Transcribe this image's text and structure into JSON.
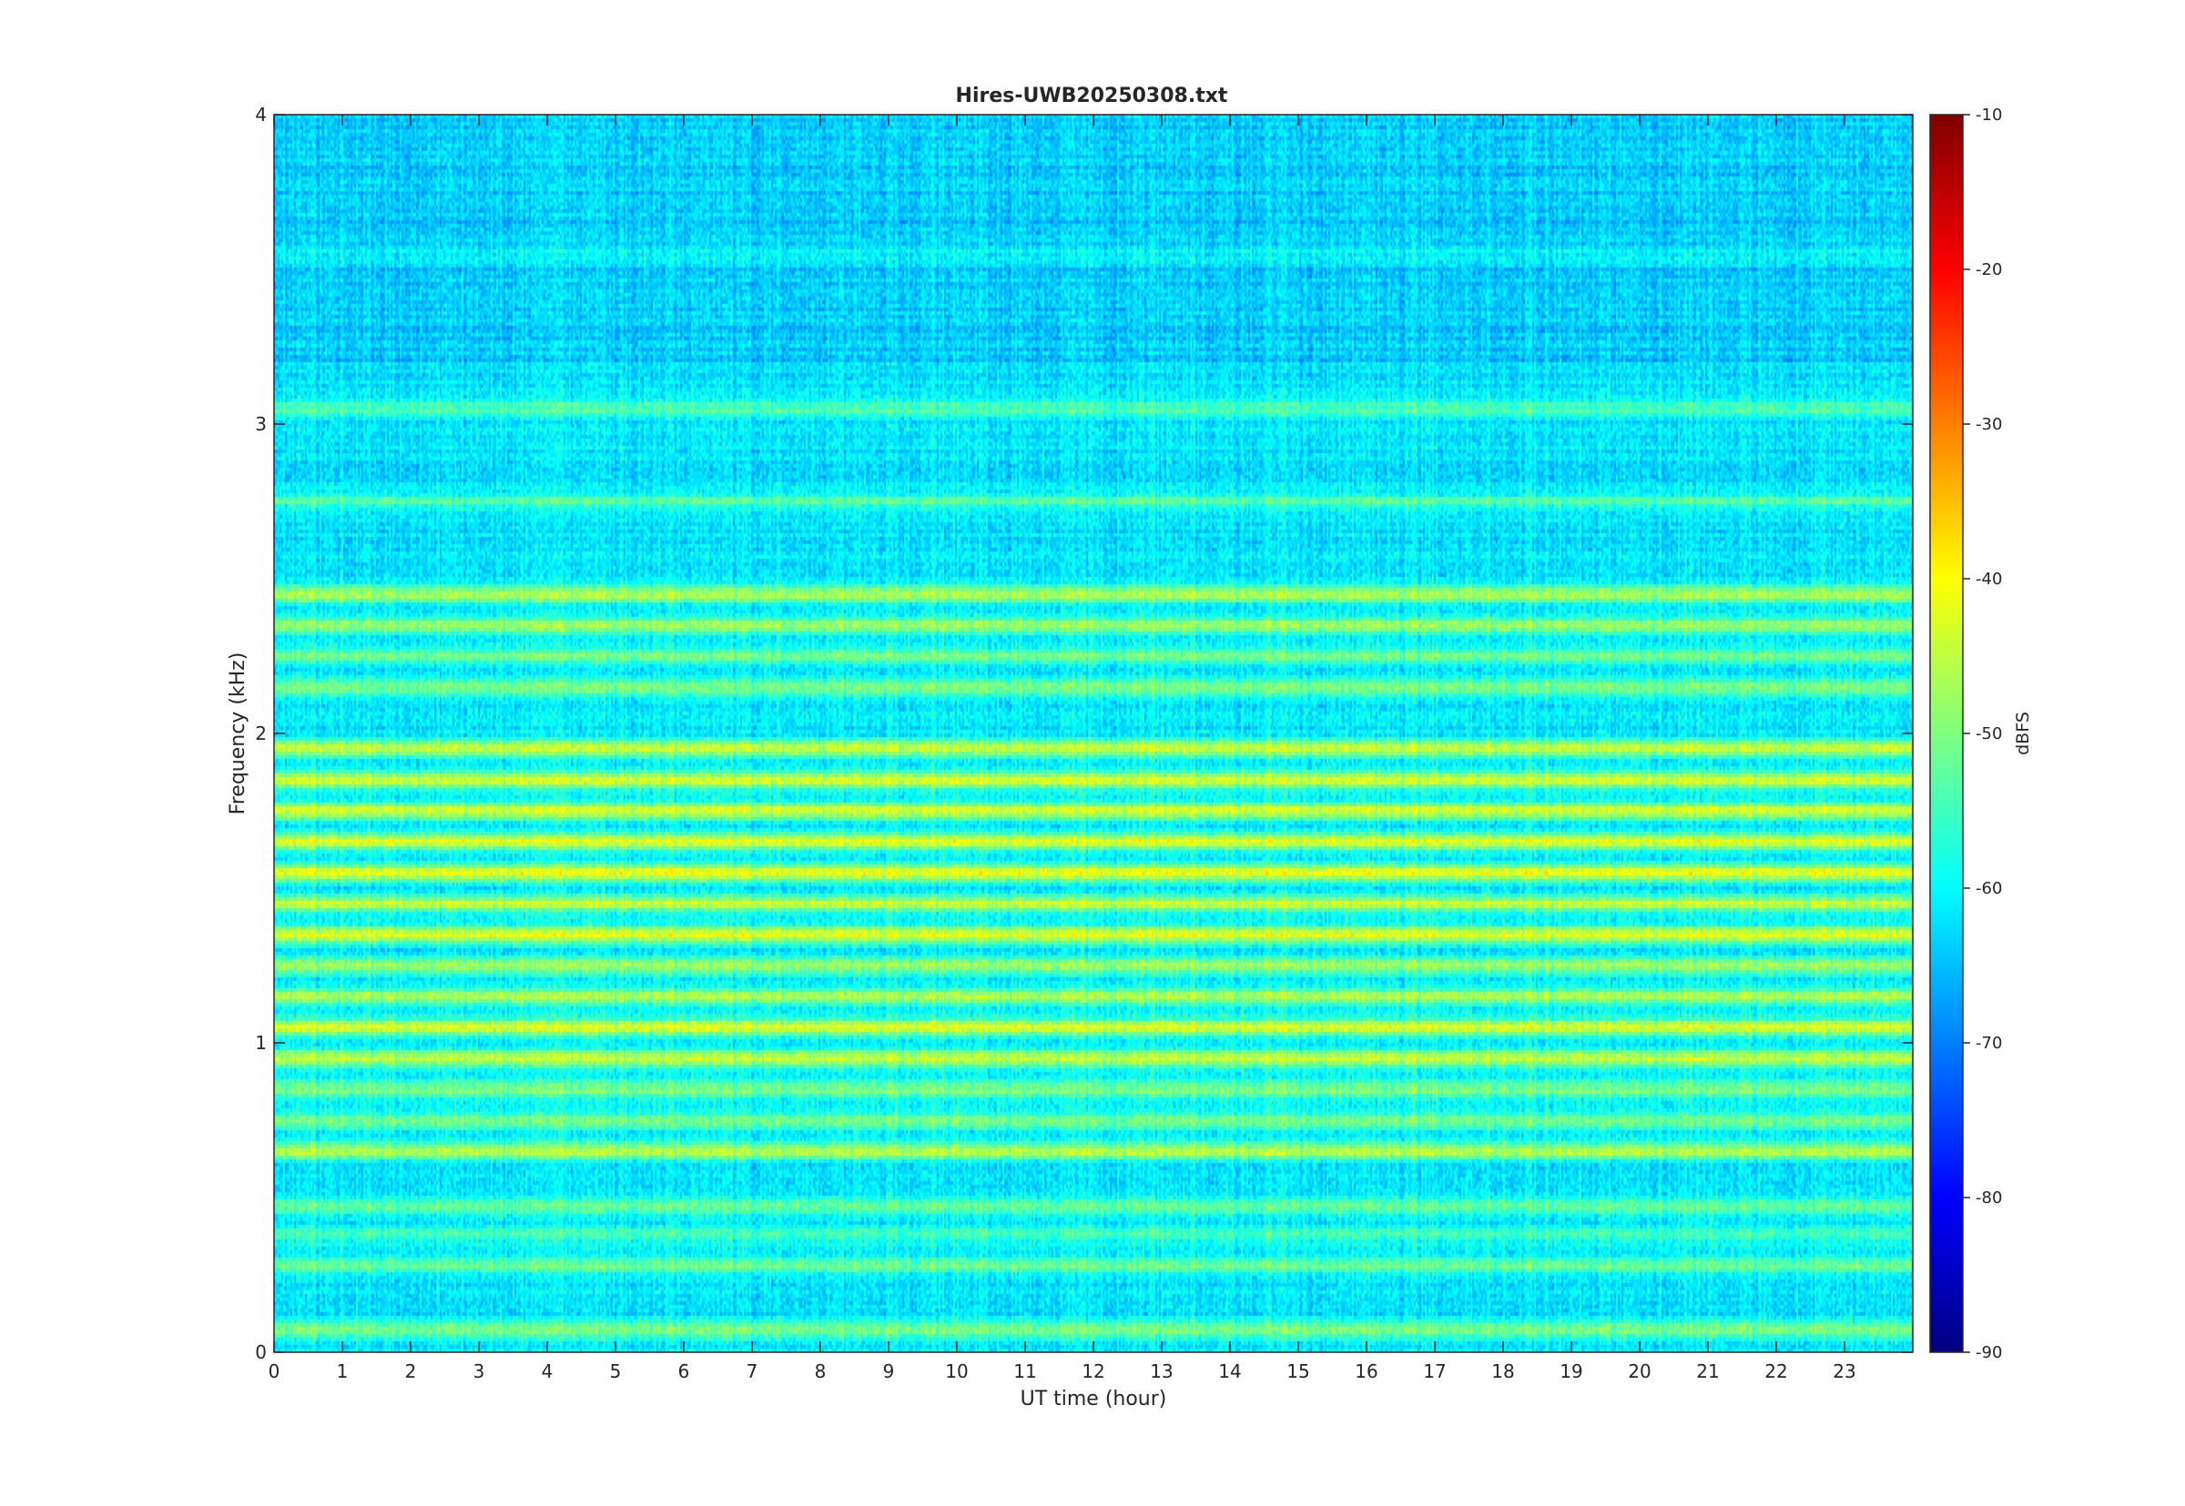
{
  "chart_data": {
    "type": "heatmap",
    "title": "Hires-UWB20250308.txt",
    "xlabel": "UT time (hour)",
    "ylabel": "Frequency (kHz)",
    "xlim": [
      0,
      24
    ],
    "ylim": [
      0,
      4
    ],
    "x_ticks": [
      "0",
      "1",
      "2",
      "3",
      "4",
      "5",
      "6",
      "7",
      "8",
      "9",
      "10",
      "11",
      "12",
      "13",
      "14",
      "15",
      "16",
      "17",
      "18",
      "19",
      "20",
      "21",
      "22",
      "23"
    ],
    "y_ticks": [
      "0",
      "1",
      "2",
      "3",
      "4"
    ],
    "colorbar": {
      "label": "dBFS",
      "limits": [
        -90,
        -10
      ],
      "ticks": [
        "-10",
        "-20",
        "-30",
        "-40",
        "-50",
        "-60",
        "-70",
        "-80",
        "-90"
      ],
      "colormap": "jet"
    },
    "grid": false,
    "noise_floor_dbfs": -62,
    "bands": [
      {
        "freq_khz": 0.07,
        "level_dbfs": -50
      },
      {
        "freq_khz": 0.28,
        "level_dbfs": -52
      },
      {
        "freq_khz": 0.38,
        "level_dbfs": -54
      },
      {
        "freq_khz": 0.47,
        "level_dbfs": -52
      },
      {
        "freq_khz": 0.65,
        "level_dbfs": -45
      },
      {
        "freq_khz": 0.75,
        "level_dbfs": -50
      },
      {
        "freq_khz": 0.85,
        "level_dbfs": -50
      },
      {
        "freq_khz": 0.95,
        "level_dbfs": -44
      },
      {
        "freq_khz": 1.05,
        "level_dbfs": -43
      },
      {
        "freq_khz": 1.15,
        "level_dbfs": -45
      },
      {
        "freq_khz": 1.25,
        "level_dbfs": -47
      },
      {
        "freq_khz": 1.35,
        "level_dbfs": -43
      },
      {
        "freq_khz": 1.45,
        "level_dbfs": -45
      },
      {
        "freq_khz": 1.55,
        "level_dbfs": -42
      },
      {
        "freq_khz": 1.65,
        "level_dbfs": -42
      },
      {
        "freq_khz": 1.75,
        "level_dbfs": -43
      },
      {
        "freq_khz": 1.85,
        "level_dbfs": -42
      },
      {
        "freq_khz": 1.95,
        "level_dbfs": -44
      },
      {
        "freq_khz": 2.15,
        "level_dbfs": -50
      },
      {
        "freq_khz": 2.25,
        "level_dbfs": -50
      },
      {
        "freq_khz": 2.35,
        "level_dbfs": -48
      },
      {
        "freq_khz": 2.45,
        "level_dbfs": -46
      },
      {
        "freq_khz": 2.75,
        "level_dbfs": -54
      },
      {
        "freq_khz": 3.05,
        "level_dbfs": -54
      },
      {
        "freq_khz": 3.55,
        "level_dbfs": -58
      }
    ],
    "colors": {
      "axes_edge": "#262626",
      "text": "#262626",
      "background": "#ffffff"
    }
  }
}
